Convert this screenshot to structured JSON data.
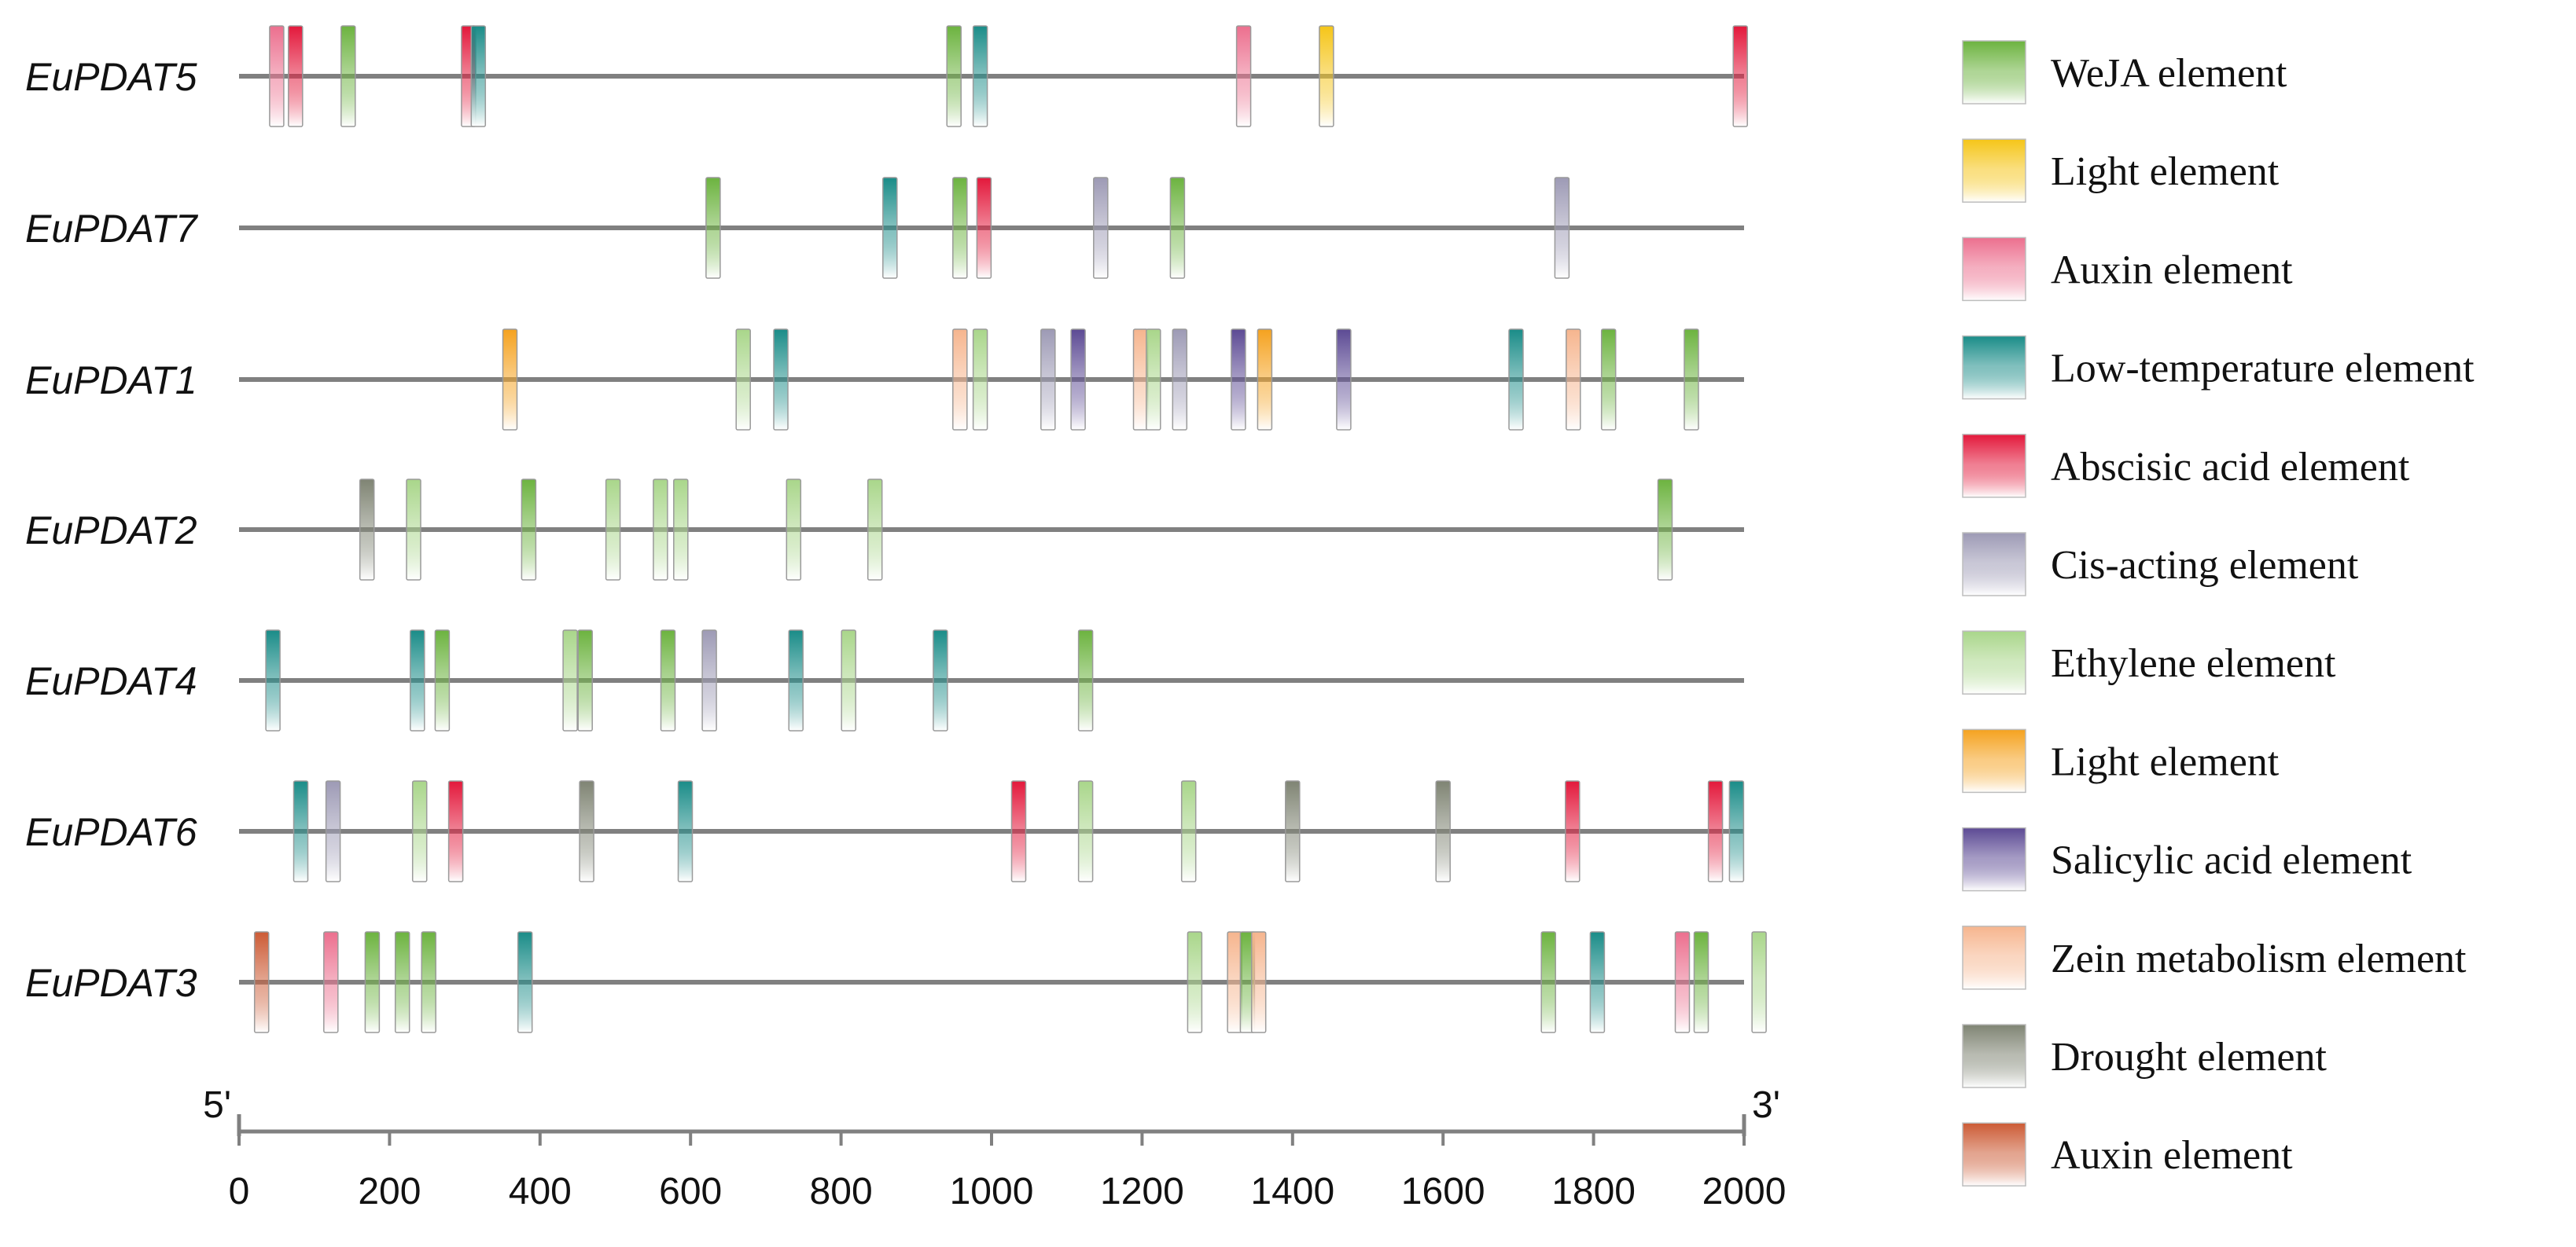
{
  "chart_data": {
    "type": "promoter-element-map",
    "axis": {
      "min": 0,
      "max": 2000,
      "ticks": [
        0,
        200,
        400,
        600,
        800,
        1000,
        1200,
        1400,
        1600,
        1800,
        2000
      ],
      "left_label": "5'",
      "right_label": "3'"
    },
    "element_types": [
      {
        "id": "weja",
        "label": "WeJA element",
        "color": "#6cb33f"
      },
      {
        "id": "light_y",
        "label": "Light element",
        "color": "#f5c518"
      },
      {
        "id": "auxin_p",
        "label": "Auxin element",
        "color": "#ec6f8e"
      },
      {
        "id": "lowtemp",
        "label": "Low-temperature element",
        "color": "#1a8c88"
      },
      {
        "id": "aba",
        "label": "Abscisic acid element",
        "color": "#e3183b"
      },
      {
        "id": "cis",
        "label": "Cis-acting element",
        "color": "#9d9ab5"
      },
      {
        "id": "ethylene",
        "label": "Ethylene element",
        "color": "#a9d68a"
      },
      {
        "id": "light_o",
        "label": "Light element",
        "color": "#f5a21f"
      },
      {
        "id": "sa",
        "label": "Salicylic acid element",
        "color": "#5c4a94"
      },
      {
        "id": "zein",
        "label": "Zein metabolism element",
        "color": "#f6b58e"
      },
      {
        "id": "drought",
        "label": "Drought element",
        "color": "#7f8473"
      },
      {
        "id": "auxin_o",
        "label": "Auxin element",
        "color": "#cc5b35"
      }
    ],
    "genes": [
      {
        "name": "EuPDAT5",
        "elements": [
          {
            "type": "auxin_p",
            "pos": 50
          },
          {
            "type": "aba",
            "pos": 75
          },
          {
            "type": "weja",
            "pos": 145
          },
          {
            "type": "aba",
            "pos": 305
          },
          {
            "type": "lowtemp",
            "pos": 318
          },
          {
            "type": "weja",
            "pos": 950
          },
          {
            "type": "lowtemp",
            "pos": 985
          },
          {
            "type": "auxin_p",
            "pos": 1335
          },
          {
            "type": "light_y",
            "pos": 1445
          },
          {
            "type": "aba",
            "pos": 1995
          }
        ]
      },
      {
        "name": "EuPDAT7",
        "elements": [
          {
            "type": "weja",
            "pos": 630
          },
          {
            "type": "lowtemp",
            "pos": 865
          },
          {
            "type": "weja",
            "pos": 958
          },
          {
            "type": "aba",
            "pos": 990
          },
          {
            "type": "cis",
            "pos": 1145
          },
          {
            "type": "weja",
            "pos": 1247
          },
          {
            "type": "cis",
            "pos": 1758
          }
        ]
      },
      {
        "name": "EuPDAT1",
        "elements": [
          {
            "type": "light_o",
            "pos": 360
          },
          {
            "type": "ethylene",
            "pos": 670
          },
          {
            "type": "lowtemp",
            "pos": 720
          },
          {
            "type": "zein",
            "pos": 958
          },
          {
            "type": "ethylene",
            "pos": 985
          },
          {
            "type": "cis",
            "pos": 1075
          },
          {
            "type": "sa",
            "pos": 1115
          },
          {
            "type": "zein",
            "pos": 1198
          },
          {
            "type": "ethylene",
            "pos": 1215
          },
          {
            "type": "cis",
            "pos": 1250
          },
          {
            "type": "sa",
            "pos": 1328
          },
          {
            "type": "light_o",
            "pos": 1363
          },
          {
            "type": "sa",
            "pos": 1468
          },
          {
            "type": "lowtemp",
            "pos": 1697
          },
          {
            "type": "zein",
            "pos": 1773
          },
          {
            "type": "weja",
            "pos": 1820
          },
          {
            "type": "weja",
            "pos": 1930
          }
        ]
      },
      {
        "name": "EuPDAT2",
        "elements": [
          {
            "type": "drought",
            "pos": 170
          },
          {
            "type": "ethylene",
            "pos": 232
          },
          {
            "type": "weja",
            "pos": 385
          },
          {
            "type": "ethylene",
            "pos": 497
          },
          {
            "type": "ethylene",
            "pos": 560
          },
          {
            "type": "ethylene",
            "pos": 587
          },
          {
            "type": "ethylene",
            "pos": 737
          },
          {
            "type": "ethylene",
            "pos": 845
          },
          {
            "type": "weja",
            "pos": 1895
          }
        ]
      },
      {
        "name": "EuPDAT4",
        "elements": [
          {
            "type": "lowtemp",
            "pos": 45
          },
          {
            "type": "lowtemp",
            "pos": 237
          },
          {
            "type": "weja",
            "pos": 270
          },
          {
            "type": "ethylene",
            "pos": 440
          },
          {
            "type": "weja",
            "pos": 460
          },
          {
            "type": "weja",
            "pos": 570
          },
          {
            "type": "cis",
            "pos": 625
          },
          {
            "type": "lowtemp",
            "pos": 740
          },
          {
            "type": "ethylene",
            "pos": 810
          },
          {
            "type": "lowtemp",
            "pos": 932
          },
          {
            "type": "weja",
            "pos": 1125
          }
        ]
      },
      {
        "name": "EuPDAT6",
        "elements": [
          {
            "type": "lowtemp",
            "pos": 82
          },
          {
            "type": "cis",
            "pos": 125
          },
          {
            "type": "ethylene",
            "pos": 240
          },
          {
            "type": "aba",
            "pos": 288
          },
          {
            "type": "drought",
            "pos": 462
          },
          {
            "type": "lowtemp",
            "pos": 593
          },
          {
            "type": "aba",
            "pos": 1036
          },
          {
            "type": "ethylene",
            "pos": 1125
          },
          {
            "type": "ethylene",
            "pos": 1262
          },
          {
            "type": "drought",
            "pos": 1400
          },
          {
            "type": "drought",
            "pos": 1600
          },
          {
            "type": "aba",
            "pos": 1772
          },
          {
            "type": "aba",
            "pos": 1962
          },
          {
            "type": "lowtemp",
            "pos": 1990
          }
        ]
      },
      {
        "name": "EuPDAT3",
        "elements": [
          {
            "type": "auxin_o",
            "pos": 30
          },
          {
            "type": "auxin_p",
            "pos": 122
          },
          {
            "type": "weja",
            "pos": 177
          },
          {
            "type": "weja",
            "pos": 217
          },
          {
            "type": "weja",
            "pos": 252
          },
          {
            "type": "lowtemp",
            "pos": 380
          },
          {
            "type": "ethylene",
            "pos": 1270
          },
          {
            "type": "zein",
            "pos": 1323
          },
          {
            "type": "weja",
            "pos": 1340
          },
          {
            "type": "zein",
            "pos": 1355
          },
          {
            "type": "weja",
            "pos": 1740
          },
          {
            "type": "lowtemp",
            "pos": 1805
          },
          {
            "type": "auxin_p",
            "pos": 1918
          },
          {
            "type": "weja",
            "pos": 1943
          },
          {
            "type": "ethylene",
            "pos": 2020
          }
        ]
      }
    ]
  }
}
